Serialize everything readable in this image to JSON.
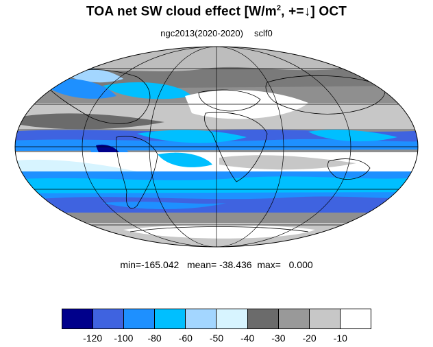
{
  "title": {
    "main": "TOA net SW cloud effect [W/m",
    "sup": "2",
    "rest": ", +=↓]  OCT"
  },
  "subtitle": {
    "case": "ngc2013(2020-2020)",
    "var": "sclf0"
  },
  "stats": {
    "text": "min=-165.042   mean= -38.436  max=   0.000"
  },
  "colorbar": {
    "colors": [
      "#00008b",
      "#3f63e0",
      "#1e90ff",
      "#00bfff",
      "#a3d6ff",
      "#d7f4ff",
      "#6b6b6b",
      "#999999",
      "#c7c7c7",
      "#ffffff"
    ],
    "tick_labels": [
      "-120",
      "-100",
      "-80",
      "-60",
      "-50",
      "-40",
      "-30",
      "-20",
      "-10"
    ]
  },
  "map": {
    "projection": "mollweide",
    "graticule_lat": [
      -60,
      -30,
      0,
      30,
      60
    ],
    "graticule_lon": [
      -120,
      -60,
      0,
      60,
      120
    ]
  }
}
